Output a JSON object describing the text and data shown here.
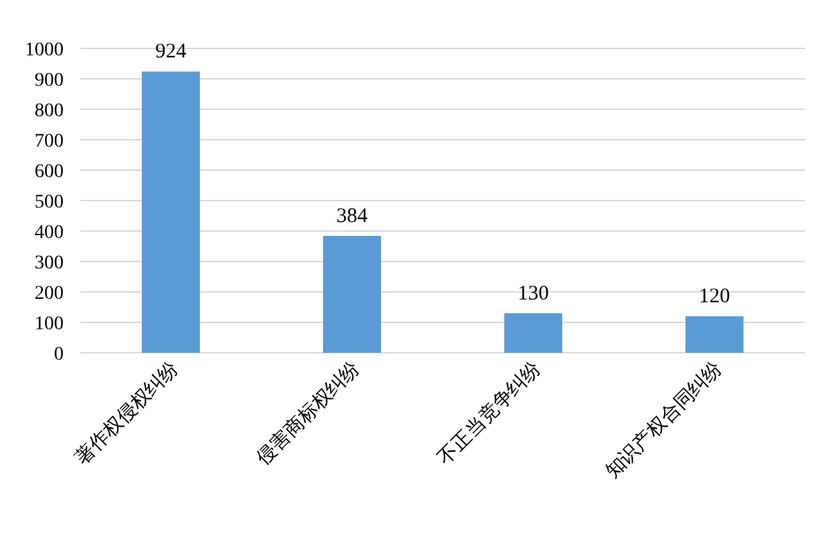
{
  "chart_data": {
    "type": "bar",
    "categories": [
      "著作权侵权纠纷",
      "侵害商标权纠纷",
      "不正当竞争纠纷",
      "知识产权合同纠纷"
    ],
    "values": [
      924,
      384,
      130,
      120
    ],
    "color": "#5b9bd5",
    "ylim": [
      0,
      1000
    ],
    "yticks": [
      0,
      100,
      200,
      300,
      400,
      500,
      600,
      700,
      800,
      900,
      1000
    ],
    "grid": "y",
    "data_labels": true
  }
}
